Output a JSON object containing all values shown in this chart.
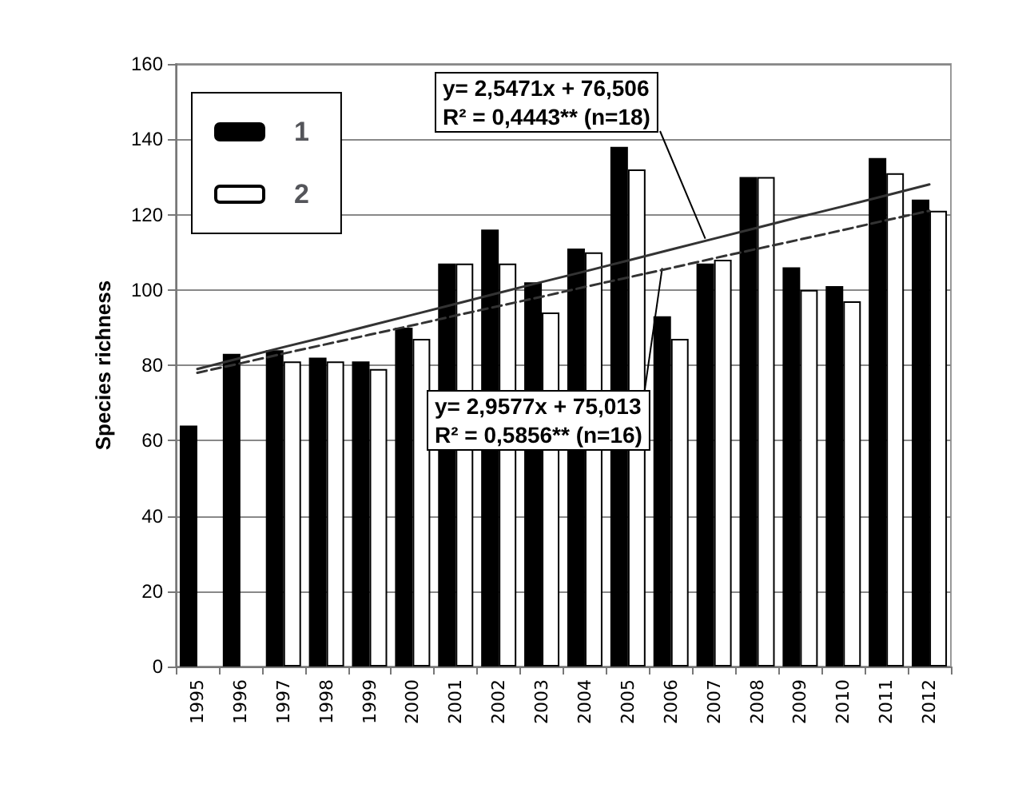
{
  "chart_data": {
    "type": "bar",
    "ylabel": "Species richness",
    "categories": [
      "1995",
      "1996",
      "1997",
      "1998",
      "1999",
      "2000",
      "2001",
      "2002",
      "2003",
      "2004",
      "2005",
      "2006",
      "2007",
      "2008",
      "2009",
      "2010",
      "2011",
      "2012"
    ],
    "series": [
      {
        "name": "1",
        "color": "#000000",
        "values": [
          64,
          83,
          84,
          82,
          81,
          90,
          107,
          116,
          102,
          111,
          138,
          93,
          107,
          130,
          106,
          101,
          135,
          124
        ]
      },
      {
        "name": "2",
        "color": "#ffffff",
        "values": [
          null,
          null,
          81,
          81,
          79,
          87,
          107,
          107,
          94,
          110,
          132,
          87,
          108,
          130,
          100,
          97,
          131,
          121
        ]
      },
      {
        "type": "line",
        "color": "#333333",
        "line_style": "solid",
        "values": [
          79.0,
          81.9,
          84.8,
          87.6,
          90.5,
          93.4,
          96.3,
          99.2,
          102.1,
          104.9,
          107.8,
          110.7,
          113.6,
          116.5,
          119.4,
          122.2,
          125.1,
          128.0
        ]
      },
      {
        "type": "line",
        "color": "#333333",
        "line_style": "dashed",
        "values": [
          78.0,
          80.5,
          83.1,
          85.6,
          88.1,
          90.6,
          93.2,
          95.7,
          98.2,
          100.8,
          103.3,
          105.8,
          108.4,
          110.9,
          113.4,
          115.9,
          118.5,
          121.0
        ]
      }
    ],
    "ylim": [
      0,
      160
    ],
    "yticks": [
      0,
      20,
      40,
      60,
      80,
      100,
      120,
      140,
      160
    ],
    "grid": "y",
    "legend": "top left",
    "marker": "none",
    "annotations": [
      {
        "text": "y= 2,5471x + 76,506\nR² = 0,4443** (n=18)",
        "x": "2007",
        "y": 113.6
      },
      {
        "text": "y= 2,9577x + 75,013\nR² = 0,5856** (n=16)",
        "x": "2006",
        "y": 105.8
      }
    ]
  }
}
